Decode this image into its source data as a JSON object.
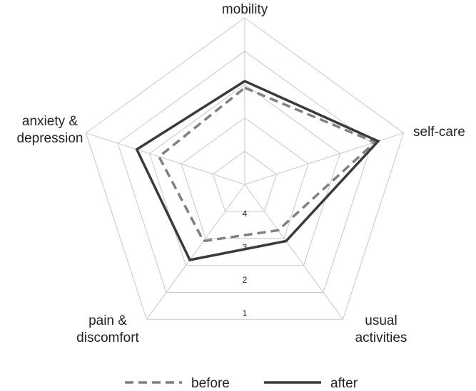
{
  "chart_data": {
    "type": "radar",
    "axes": [
      "mobility",
      "self-care",
      "usual activities",
      "pain & discomfort",
      "anxiety & depression"
    ],
    "axis_label_lines": [
      [
        "mobility"
      ],
      [
        "self-care"
      ],
      [
        "usual",
        "activities"
      ],
      [
        "pain &",
        "discomfort"
      ],
      [
        "anxiety &",
        "depression"
      ]
    ],
    "radial_ticks": [
      "1",
      "2",
      "3",
      "4"
    ],
    "radial_range": [
      5,
      0
    ],
    "series": [
      {
        "name": "before",
        "values": [
          2.1,
          0.9,
          3.3,
          2.9,
          2.3
        ]
      },
      {
        "name": "after",
        "values": [
          1.9,
          0.8,
          2.9,
          2.2,
          1.6
        ]
      }
    ],
    "legend": [
      "before",
      "after"
    ],
    "legend_placement": "bottom",
    "colors": {
      "before": "#808080",
      "after": "#3a3a3a",
      "grid": "#c8c8c8"
    }
  }
}
